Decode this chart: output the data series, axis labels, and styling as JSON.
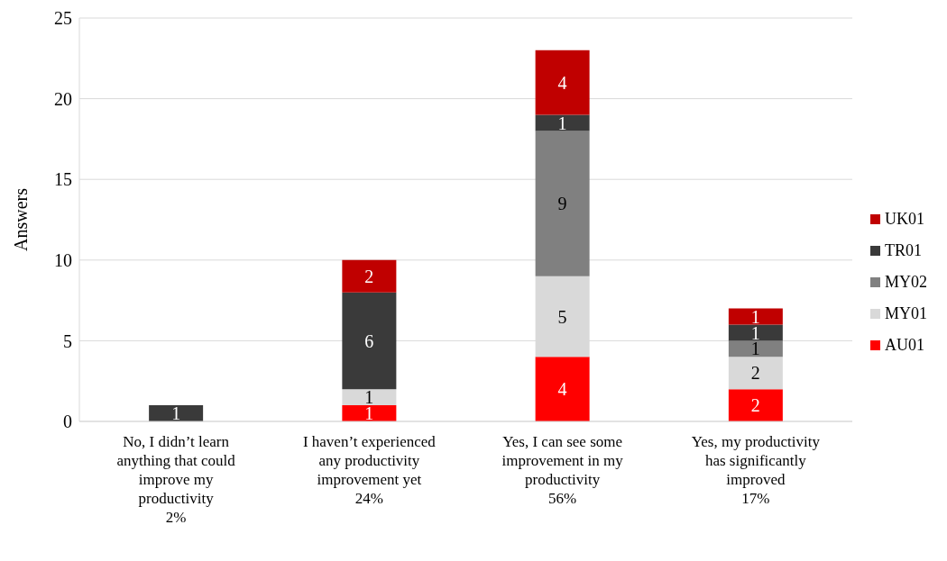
{
  "chart_data": {
    "type": "bar",
    "ylabel": "Answers",
    "stacked": true,
    "categories": [
      "No, I didn’t learn\nanything that could\nimprove my\nproductivity\n2%",
      "I haven’t experienced\nany productivity\nimprovement yet\n24%",
      "Yes, I can see some\nimprovement in my\nproductivity\n56%",
      "Yes, my productivity\nhas significantly\nimproved\n17%"
    ],
    "series": [
      {
        "name": "AU01",
        "color": "#ff0000",
        "values": [
          null,
          1,
          4,
          2
        ]
      },
      {
        "name": "MY01",
        "color": "#d9d9d9",
        "values": [
          null,
          1,
          5,
          2
        ]
      },
      {
        "name": "MY02",
        "color": "#808080",
        "values": [
          null,
          null,
          9,
          1
        ]
      },
      {
        "name": "TR01",
        "color": "#3a3a3a",
        "values": [
          1,
          6,
          1,
          1
        ]
      },
      {
        "name": "UK01",
        "color": "#c00000",
        "values": [
          null,
          2,
          4,
          1
        ]
      }
    ],
    "ylim": [
      0,
      25
    ],
    "yticks": [
      0,
      5,
      10,
      15,
      20,
      25
    ],
    "grid": "y",
    "legend": "right",
    "data_labels": true
  }
}
